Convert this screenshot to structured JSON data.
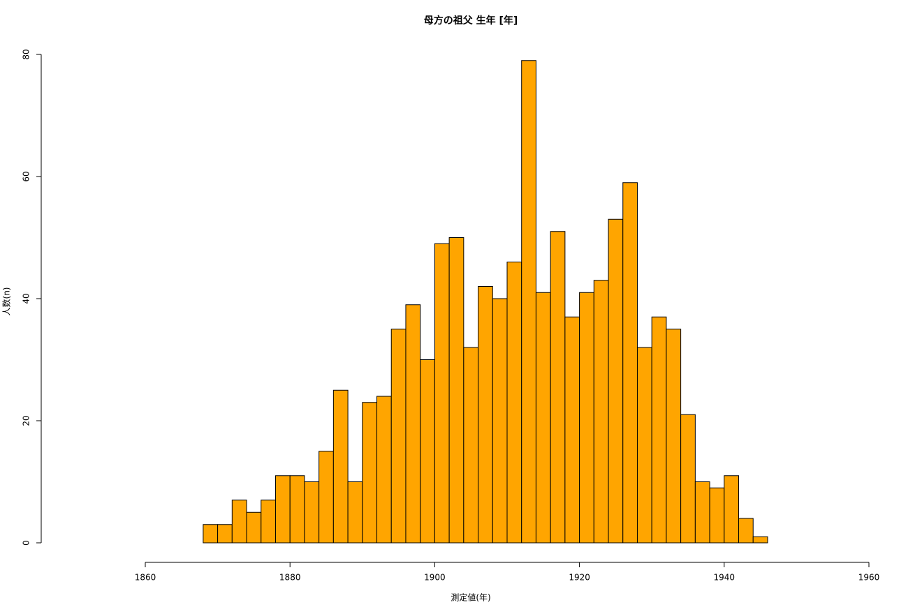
{
  "chart_data": {
    "type": "histogram",
    "title": "母方の祖父 生年 [年]",
    "x_label": "測定値(年)",
    "y_label": "人数(n)",
    "bins": [
      1868,
      1870,
      1872,
      1874,
      1876,
      1878,
      1880,
      1882,
      1884,
      1886,
      1888,
      1890,
      1892,
      1894,
      1896,
      1898,
      1900,
      1902,
      1904,
      1906,
      1908,
      1910,
      1912,
      1914,
      1916,
      1918,
      1920,
      1922,
      1924,
      1926,
      1928,
      1930,
      1932,
      1934,
      1936,
      1938,
      1940,
      1942,
      1944,
      1946
    ],
    "values": [
      3,
      3,
      7,
      5,
      7,
      11,
      11,
      10,
      15,
      25,
      10,
      23,
      24,
      35,
      39,
      30,
      49,
      50,
      32,
      42,
      40,
      46,
      79,
      41,
      51,
      37,
      41,
      43,
      53,
      59,
      32,
      37,
      35,
      21,
      10,
      9,
      11,
      4,
      1
    ],
    "color": "#ffa500",
    "xlim": [
      1860,
      1960
    ],
    "xticks": [
      1860,
      1880,
      1900,
      1920,
      1940,
      1960
    ],
    "ylim": [
      0,
      80
    ],
    "yticks": [
      0,
      20,
      40,
      60,
      80
    ]
  }
}
